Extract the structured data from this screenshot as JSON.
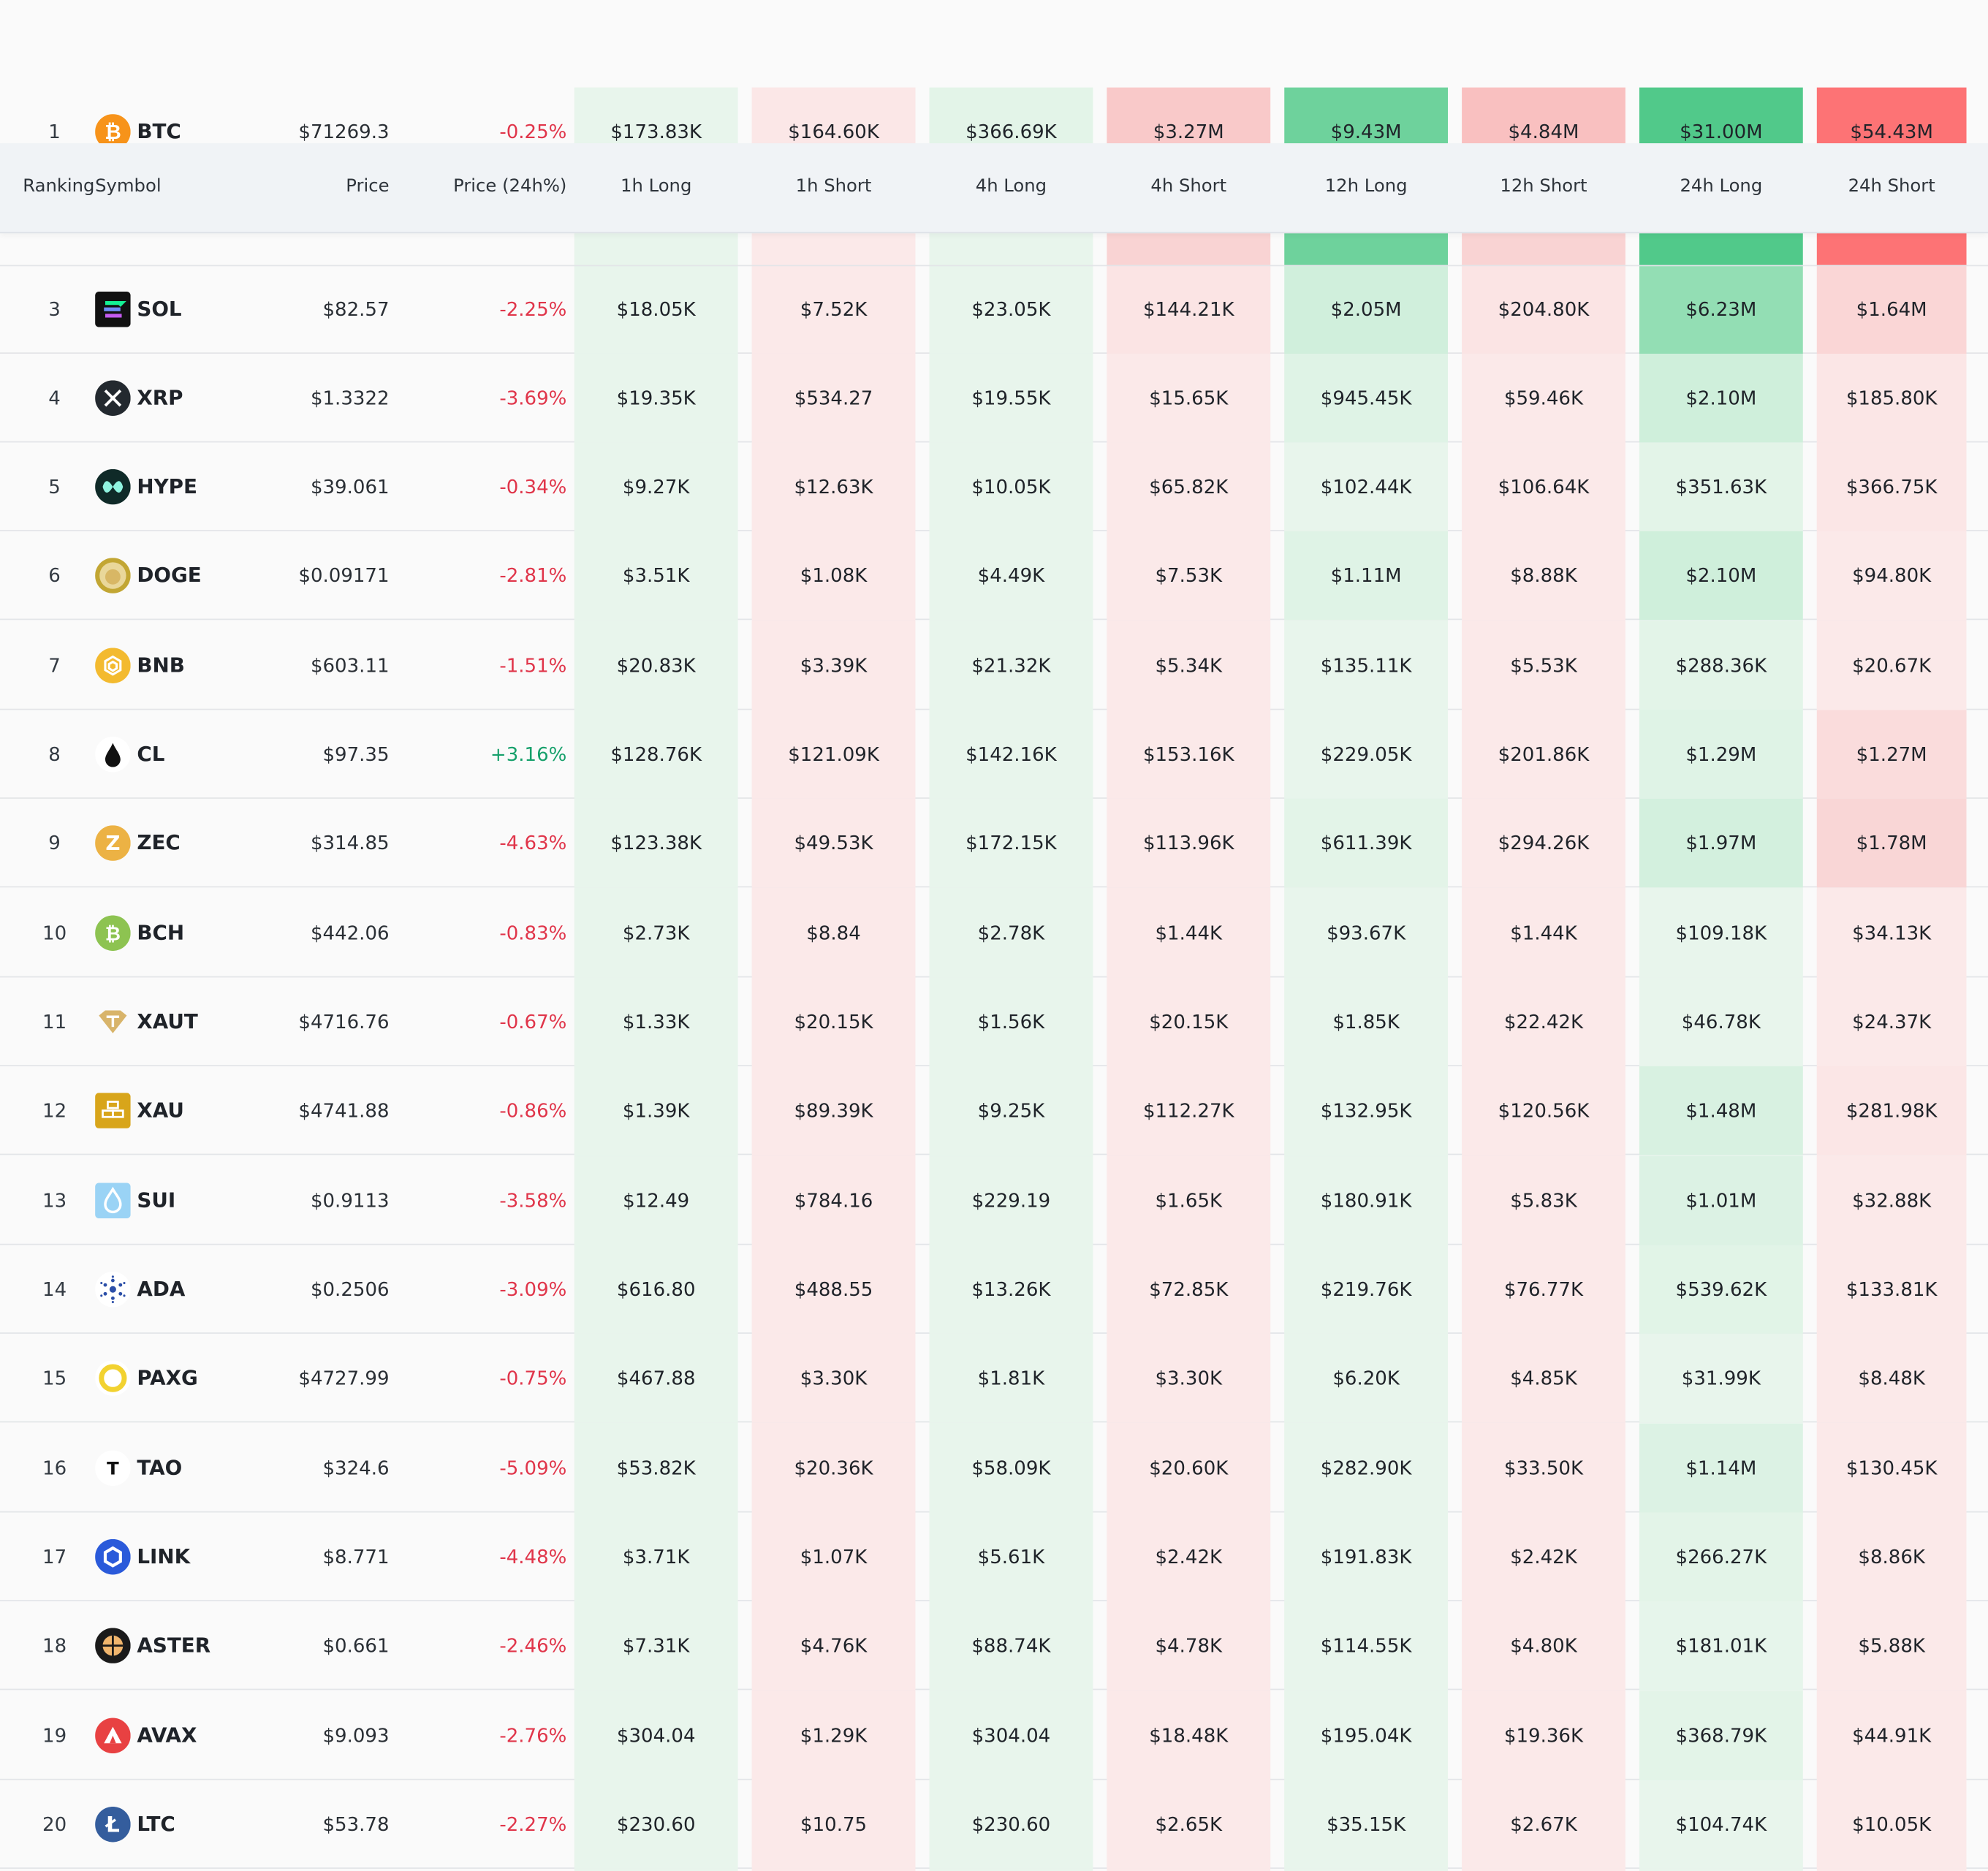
{
  "header": {
    "ranking": "Ranking",
    "symbol": "Symbol",
    "price": "Price",
    "price_change": "Price (24h%)",
    "h1_long": "1h Long",
    "h1_short": "1h Short",
    "h4_long": "4h Long",
    "h4_short": "4h Short",
    "h12_long": "12h Long",
    "h12_short": "12h Short",
    "h24_long": "24h Long",
    "h24_short": "24h Short"
  },
  "colors": {
    "long_bg": "#e8f5ec",
    "short_bg": "#fbe9e9",
    "up": "#16a06b",
    "down": "#e0354a"
  },
  "rows": [
    {
      "rank": "1",
      "symbol": "BTC",
      "icon": "bitcoin-icon",
      "price": "$71269.3",
      "change": "-0.25%",
      "dir": "down",
      "v": [
        "$173.83K",
        "$164.60K",
        "$366.69K",
        "$3.27M",
        "$9.43M",
        "$4.84M",
        "$31.00M",
        "$54.43M"
      ],
      "bg": [
        "#e8f5ec",
        "#fbe7e7",
        "#e3f4e8",
        "#f9c9c9",
        "#6ed29c",
        "#f9c0c0",
        "#51c98a",
        "#fd7375"
      ]
    },
    {
      "rank": "3",
      "symbol": "SOL",
      "icon": "solana-icon",
      "price": "$82.57",
      "change": "-2.25%",
      "dir": "down",
      "v": [
        "$18.05K",
        "$7.52K",
        "$23.05K",
        "$144.21K",
        "$2.05M",
        "$204.80K",
        "$6.23M",
        "$1.64M"
      ],
      "bg": [
        "#e8f5ec",
        "#fbe9e9",
        "#e8f5ec",
        "#fbe4e4",
        "#d0efdc",
        "#fbe4e4",
        "#93deb4",
        "#fad6d6"
      ]
    },
    {
      "rank": "4",
      "symbol": "XRP",
      "icon": "xrp-icon",
      "price": "$1.3322",
      "change": "-3.69%",
      "dir": "down",
      "v": [
        "$19.35K",
        "$534.27",
        "$19.55K",
        "$15.65K",
        "$945.45K",
        "$59.46K",
        "$2.10M",
        "$185.80K"
      ],
      "bg": [
        "#e8f5ec",
        "#fbe9e9",
        "#e8f5ec",
        "#fbe9e9",
        "#dff3e6",
        "#fbe9e9",
        "#cfefdb",
        "#fbe6e6"
      ]
    },
    {
      "rank": "5",
      "symbol": "HYPE",
      "icon": "hyperliquid-icon",
      "price": "$39.061",
      "change": "-0.34%",
      "dir": "down",
      "v": [
        "$9.27K",
        "$12.63K",
        "$10.05K",
        "$65.82K",
        "$102.44K",
        "$106.64K",
        "$351.63K",
        "$366.75K"
      ],
      "bg": [
        "#e8f5ec",
        "#fbe9e9",
        "#e8f5ec",
        "#fbe9e9",
        "#e8f5ec",
        "#fbe9e9",
        "#e3f4e8",
        "#fbe6e6"
      ]
    },
    {
      "rank": "6",
      "symbol": "DOGE",
      "icon": "dogecoin-icon",
      "price": "$0.09171",
      "change": "-2.81%",
      "dir": "down",
      "v": [
        "$3.51K",
        "$1.08K",
        "$4.49K",
        "$7.53K",
        "$1.11M",
        "$8.88K",
        "$2.10M",
        "$94.80K"
      ],
      "bg": [
        "#e8f5ec",
        "#fbe9e9",
        "#e8f5ec",
        "#fbe9e9",
        "#dff3e6",
        "#fbe9e9",
        "#cfefdb",
        "#fbe9e9"
      ]
    },
    {
      "rank": "7",
      "symbol": "BNB",
      "icon": "bnb-icon",
      "price": "$603.11",
      "change": "-1.51%",
      "dir": "down",
      "v": [
        "$20.83K",
        "$3.39K",
        "$21.32K",
        "$5.34K",
        "$135.11K",
        "$5.53K",
        "$288.36K",
        "$20.67K"
      ],
      "bg": [
        "#e8f5ec",
        "#fbe9e9",
        "#e8f5ec",
        "#fbe9e9",
        "#e8f5ec",
        "#fbe9e9",
        "#e3f4e8",
        "#fbe9e9"
      ]
    },
    {
      "rank": "8",
      "symbol": "CL",
      "icon": "oil-drop-icon",
      "price": "$97.35",
      "change": "+3.16%",
      "dir": "up",
      "v": [
        "$128.76K",
        "$121.09K",
        "$142.16K",
        "$153.16K",
        "$229.05K",
        "$201.86K",
        "$1.29M",
        "$1.27M"
      ],
      "bg": [
        "#e8f5ec",
        "#fbe9e9",
        "#e8f5ec",
        "#fbe9e9",
        "#e8f5ec",
        "#fbe9e9",
        "#dff3e6",
        "#fadcdc"
      ]
    },
    {
      "rank": "9",
      "symbol": "ZEC",
      "icon": "zcash-icon",
      "price": "$314.85",
      "change": "-4.63%",
      "dir": "down",
      "v": [
        "$123.38K",
        "$49.53K",
        "$172.15K",
        "$113.96K",
        "$611.39K",
        "$294.26K",
        "$1.97M",
        "$1.78M"
      ],
      "bg": [
        "#e8f5ec",
        "#fbe9e9",
        "#e8f5ec",
        "#fbe9e9",
        "#e3f4e8",
        "#fbe9e9",
        "#d3f0de",
        "#f9d6d6"
      ]
    },
    {
      "rank": "10",
      "symbol": "BCH",
      "icon": "bitcoin-cash-icon",
      "price": "$442.06",
      "change": "-0.83%",
      "dir": "down",
      "v": [
        "$2.73K",
        "$8.84",
        "$2.78K",
        "$1.44K",
        "$93.67K",
        "$1.44K",
        "$109.18K",
        "$34.13K"
      ],
      "bg": [
        "#e8f5ec",
        "#fbe9e9",
        "#e8f5ec",
        "#fbe9e9",
        "#e8f5ec",
        "#fbe9e9",
        "#e8f5ec",
        "#fbe9e9"
      ]
    },
    {
      "rank": "11",
      "symbol": "XAUT",
      "icon": "tether-gold-icon",
      "price": "$4716.76",
      "change": "-0.67%",
      "dir": "down",
      "v": [
        "$1.33K",
        "$20.15K",
        "$1.56K",
        "$20.15K",
        "$1.85K",
        "$22.42K",
        "$46.78K",
        "$24.37K"
      ],
      "bg": [
        "#e8f5ec",
        "#fbe9e9",
        "#e8f5ec",
        "#fbe9e9",
        "#e8f5ec",
        "#fbe9e9",
        "#e8f5ec",
        "#fbe9e9"
      ]
    },
    {
      "rank": "12",
      "symbol": "XAU",
      "icon": "gold-bars-icon",
      "price": "$4741.88",
      "change": "-0.86%",
      "dir": "down",
      "v": [
        "$1.39K",
        "$89.39K",
        "$9.25K",
        "$112.27K",
        "$132.95K",
        "$120.56K",
        "$1.48M",
        "$281.98K"
      ],
      "bg": [
        "#e8f5ec",
        "#fbe9e9",
        "#e8f5ec",
        "#fbe9e9",
        "#e8f5ec",
        "#fbe9e9",
        "#d8f1e1",
        "#fbe6e6"
      ]
    },
    {
      "rank": "13",
      "symbol": "SUI",
      "icon": "sui-icon",
      "price": "$0.9113",
      "change": "-3.58%",
      "dir": "down",
      "v": [
        "$12.49",
        "$784.16",
        "$229.19",
        "$1.65K",
        "$180.91K",
        "$5.83K",
        "$1.01M",
        "$32.88K"
      ],
      "bg": [
        "#e8f5ec",
        "#fbe9e9",
        "#e8f5ec",
        "#fbe9e9",
        "#e8f5ec",
        "#fbe9e9",
        "#dcf2e4",
        "#fbe9e9"
      ]
    },
    {
      "rank": "14",
      "symbol": "ADA",
      "icon": "cardano-icon",
      "price": "$0.2506",
      "change": "-3.09%",
      "dir": "down",
      "v": [
        "$616.80",
        "$488.55",
        "$13.26K",
        "$72.85K",
        "$219.76K",
        "$76.77K",
        "$539.62K",
        "$133.81K"
      ],
      "bg": [
        "#e8f5ec",
        "#fbe9e9",
        "#e8f5ec",
        "#fbe9e9",
        "#e8f5ec",
        "#fbe9e9",
        "#e1f4e7",
        "#fbe9e9"
      ]
    },
    {
      "rank": "15",
      "symbol": "PAXG",
      "icon": "pax-gold-icon",
      "price": "$4727.99",
      "change": "-0.75%",
      "dir": "down",
      "v": [
        "$467.88",
        "$3.30K",
        "$1.81K",
        "$3.30K",
        "$6.20K",
        "$4.85K",
        "$31.99K",
        "$8.48K"
      ],
      "bg": [
        "#e8f5ec",
        "#fbe9e9",
        "#e8f5ec",
        "#fbe9e9",
        "#e8f5ec",
        "#fbe9e9",
        "#e8f5ec",
        "#fbe9e9"
      ]
    },
    {
      "rank": "16",
      "symbol": "TAO",
      "icon": "bittensor-icon",
      "price": "$324.6",
      "change": "-5.09%",
      "dir": "down",
      "v": [
        "$53.82K",
        "$20.36K",
        "$58.09K",
        "$20.60K",
        "$282.90K",
        "$33.50K",
        "$1.14M",
        "$130.45K"
      ],
      "bg": [
        "#e8f5ec",
        "#fbe9e9",
        "#e8f5ec",
        "#fbe9e9",
        "#e8f5ec",
        "#fbe9e9",
        "#dcf2e4",
        "#fbe9e9"
      ]
    },
    {
      "rank": "17",
      "symbol": "LINK",
      "icon": "chainlink-icon",
      "price": "$8.771",
      "change": "-4.48%",
      "dir": "down",
      "v": [
        "$3.71K",
        "$1.07K",
        "$5.61K",
        "$2.42K",
        "$191.83K",
        "$2.42K",
        "$266.27K",
        "$8.86K"
      ],
      "bg": [
        "#e8f5ec",
        "#fbe9e9",
        "#e8f5ec",
        "#fbe9e9",
        "#e8f5ec",
        "#fbe9e9",
        "#e3f4e8",
        "#fbe9e9"
      ]
    },
    {
      "rank": "18",
      "symbol": "ASTER",
      "icon": "aster-icon",
      "price": "$0.661",
      "change": "-2.46%",
      "dir": "down",
      "v": [
        "$7.31K",
        "$4.76K",
        "$88.74K",
        "$4.78K",
        "$114.55K",
        "$4.80K",
        "$181.01K",
        "$5.88K"
      ],
      "bg": [
        "#e8f5ec",
        "#fbe9e9",
        "#e8f5ec",
        "#fbe9e9",
        "#e8f5ec",
        "#fbe9e9",
        "#e6f5eb",
        "#fbe9e9"
      ]
    },
    {
      "rank": "19",
      "symbol": "AVAX",
      "icon": "avalanche-icon",
      "price": "$9.093",
      "change": "-2.76%",
      "dir": "down",
      "v": [
        "$304.04",
        "$1.29K",
        "$304.04",
        "$18.48K",
        "$195.04K",
        "$19.36K",
        "$368.79K",
        "$44.91K"
      ],
      "bg": [
        "#e8f5ec",
        "#fbe9e9",
        "#e8f5ec",
        "#fbe9e9",
        "#e8f5ec",
        "#fbe9e9",
        "#e3f4e8",
        "#fbe9e9"
      ]
    },
    {
      "rank": "20",
      "symbol": "LTC",
      "icon": "litecoin-icon",
      "price": "$53.78",
      "change": "-2.27%",
      "dir": "down",
      "v": [
        "$230.60",
        "$10.75",
        "$230.60",
        "$2.65K",
        "$35.15K",
        "$2.67K",
        "$104.74K",
        "$10.05K"
      ],
      "bg": [
        "#e8f5ec",
        "#fbe9e9",
        "#e8f5ec",
        "#fbe9e9",
        "#e8f5ec",
        "#fbe9e9",
        "#e8f5ec",
        "#fbe9e9"
      ]
    }
  ],
  "partial_row_bg": [
    "#e8f5ec",
    "#fbe9e9",
    "#e8f5ec",
    "#f9d3d3",
    "#6ed29c",
    "#f9d3d3",
    "#51c98a",
    "#fd7375"
  ]
}
